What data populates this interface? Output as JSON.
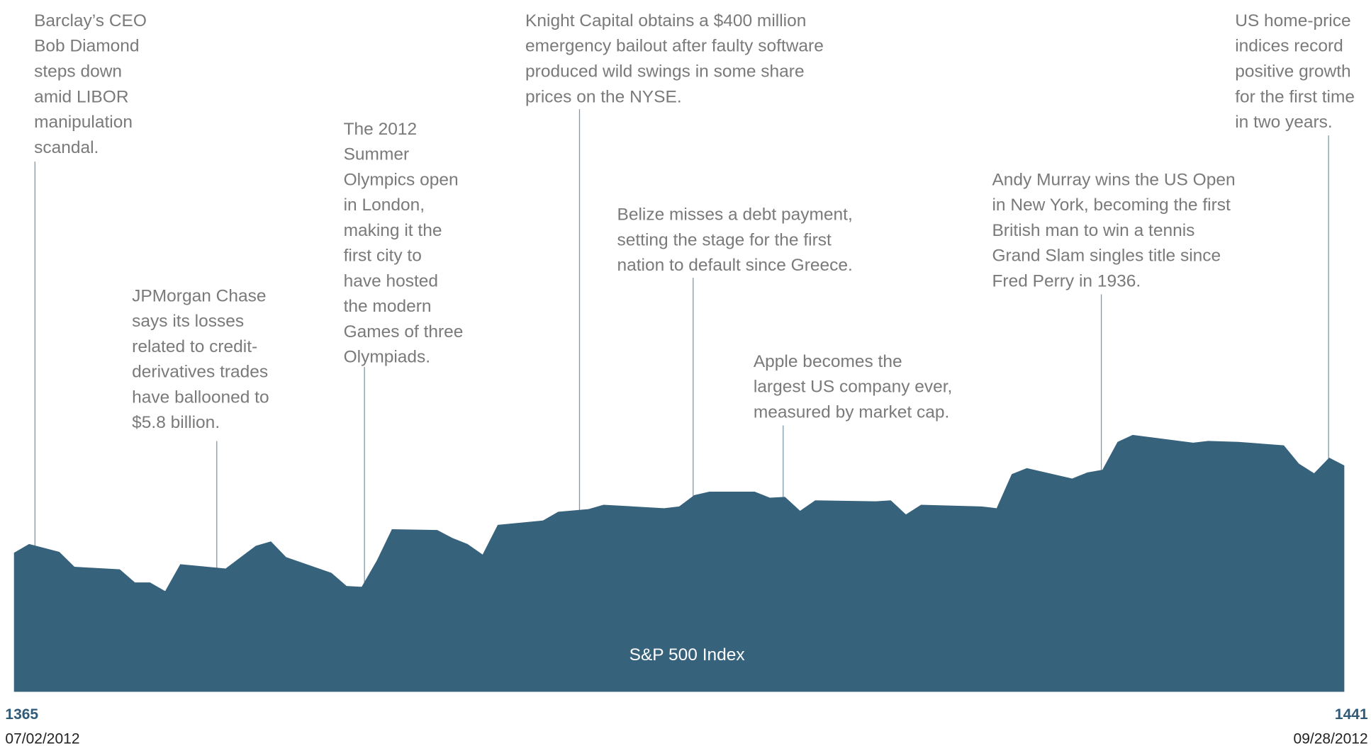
{
  "chart_data": {
    "type": "area",
    "series_label": "S&P 500 Index",
    "start_date": "07/02/2012",
    "end_date": "09/28/2012",
    "color": "#37627c",
    "x": [
      0,
      1,
      3,
      4,
      7,
      8,
      9,
      10,
      11,
      14,
      15,
      16,
      17,
      18,
      21,
      22,
      23,
      24,
      25,
      28,
      29,
      30,
      31,
      32,
      35,
      36,
      38,
      39,
      43,
      44,
      45,
      46,
      49,
      50,
      51,
      52,
      53,
      57,
      58,
      59,
      60,
      64,
      65,
      66,
      67,
      70,
      71,
      72,
      73,
      74,
      78,
      79,
      81,
      84,
      85,
      86,
      87,
      88
    ],
    "values": [
      1365,
      1372.6,
      1365.8,
      1352.8,
      1350.6,
      1339.2,
      1339.2,
      1331.6,
      1355.1,
      1351.3,
      1361.2,
      1371.1,
      1374.9,
      1361.2,
      1347.5,
      1336.1,
      1335.4,
      1358.2,
      1385.5,
      1384.8,
      1377.9,
      1372.6,
      1363.5,
      1389.3,
      1393.1,
      1400.7,
      1403,
      1406.8,
      1403.8,
      1405.3,
      1415.2,
      1418.2,
      1418.2,
      1412.9,
      1413.6,
      1401.5,
      1410.6,
      1409.8,
      1410.6,
      1398.4,
      1406.8,
      1405.3,
      1403.8,
      1433.4,
      1438.7,
      1429.6,
      1434.9,
      1437.2,
      1461.5,
      1467.6,
      1460.8,
      1462.3,
      1461.5,
      1458.5,
      1442.5,
      1434.2,
      1447.8,
      1441
    ],
    "xlim": [
      0,
      88
    ],
    "ylim": [
      1244,
      1846
    ],
    "annotations": [
      {
        "lines": [
          "Barclay’s CEO",
          "Bob Diamond",
          "steps down",
          "amid LIBOR",
          "manipulation",
          "scandal."
        ]
      },
      {
        "lines": [
          "JPMorgan Chase",
          "says its losses",
          "related to credit-",
          "derivatives trades",
          "have ballooned to",
          "$5.8 billion."
        ]
      },
      {
        "lines": [
          "The 2012",
          "Summer",
          "Olympics open",
          "in London,",
          "making it the",
          "first city to",
          "have hosted",
          "the modern",
          "Games of three",
          "Olympiads."
        ]
      },
      {
        "lines": [
          "Knight Capital obtains a $400 million",
          "emergency bailout after faulty software",
          "produced wild swings in some share",
          "prices on the NYSE."
        ]
      },
      {
        "lines": [
          "Belize misses a debt payment,",
          "setting the stage for the first",
          "nation to default since Greece."
        ]
      },
      {
        "lines": [
          "Apple becomes the",
          "largest US company ever,",
          "measured by market cap."
        ]
      },
      {
        "lines": [
          "Andy Murray wins the US Open",
          "in New York, becoming the first",
          "British man to win a tennis",
          "Grand Slam singles title since",
          "Fred Perry in 1936."
        ]
      },
      {
        "lines": [
          "US home-price",
          "indices record",
          "positive growth",
          "for the first time",
          "in two years."
        ]
      }
    ]
  }
}
